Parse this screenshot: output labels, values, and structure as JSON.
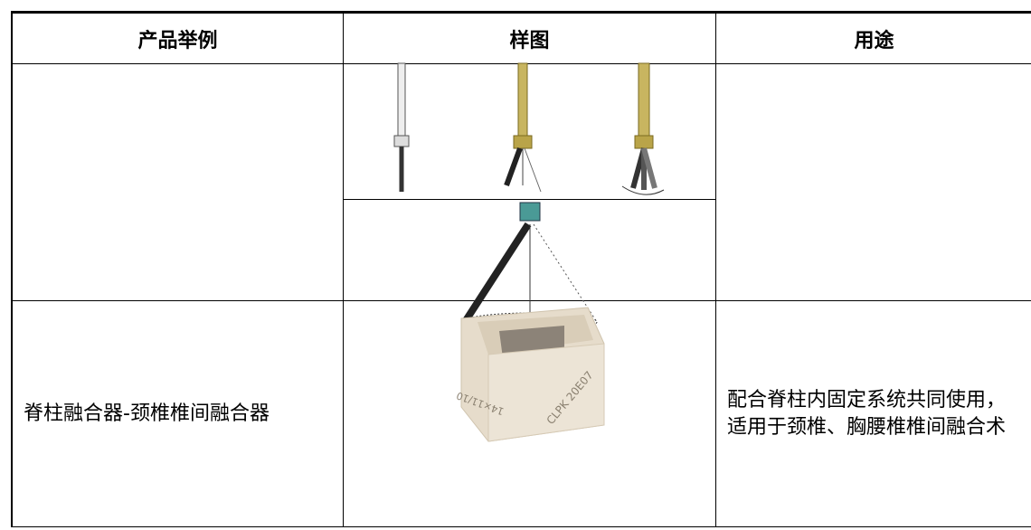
{
  "table": {
    "header": [
      "产品举例",
      "样图",
      "用途"
    ],
    "rows": [
      {
        "product": "脊柱融合器-颈椎椎间融合器",
        "usage": "配合脊柱内固定系统共同使用，适用于颈椎、胸腰椎椎间融合术"
      }
    ],
    "image_labels": [
      "CLPK 20E07",
      "14×11/10"
    ]
  }
}
